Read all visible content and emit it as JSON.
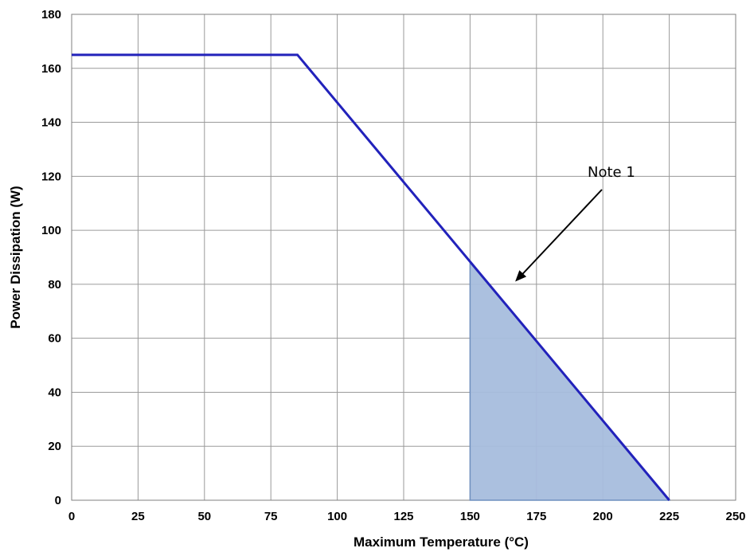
{
  "chart_data": {
    "type": "line",
    "title": "",
    "xlabel": "Maximum  Temperature (°C)",
    "ylabel": "Power Dissipation (W)",
    "xlim": [
      0,
      250
    ],
    "ylim": [
      0,
      180
    ],
    "x_ticks": [
      0,
      25,
      50,
      75,
      100,
      125,
      150,
      175,
      200,
      225,
      250
    ],
    "y_ticks": [
      0,
      20,
      40,
      60,
      80,
      100,
      120,
      140,
      160,
      180
    ],
    "grid": true,
    "series": [
      {
        "x": [
          0,
          85,
          225
        ],
        "y": [
          165,
          165,
          0
        ],
        "color": "#2222bb"
      }
    ],
    "shaded_region": {
      "x": [
        150,
        225
      ],
      "y_top": [
        88,
        0
      ],
      "color": "#a6bddd"
    },
    "annotations": [
      {
        "text": "Note 1",
        "arrow_to": {
          "x": 167,
          "y": 81
        }
      }
    ],
    "colors": {
      "line": "#2222bb",
      "fill": "#a6bddd",
      "grid": "#9a9a9a",
      "arrow": "#000000"
    }
  }
}
